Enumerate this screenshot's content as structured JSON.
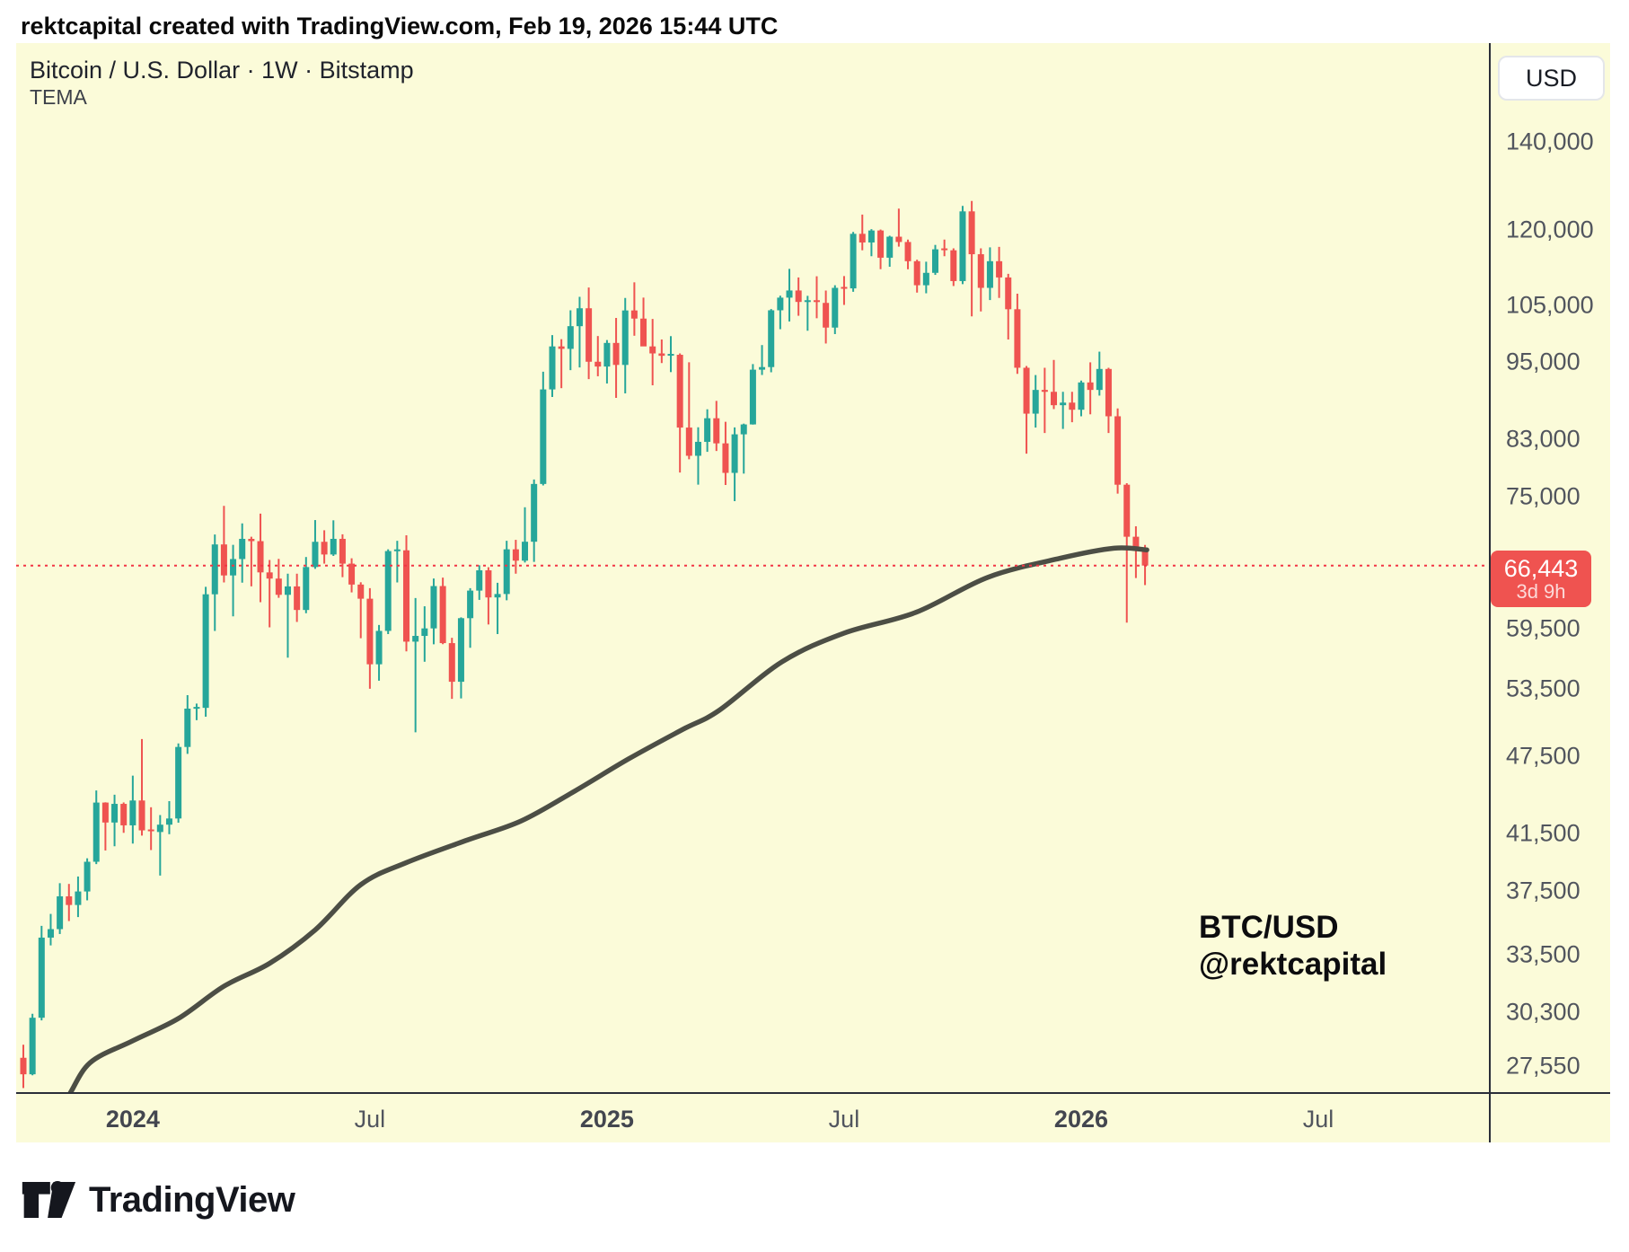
{
  "header_bar": {
    "text": "rektcapital created with TradingView.com, Feb 19, 2026 15:44 UTC"
  },
  "legend": {
    "symbol_title": "Bitcoin / U.S. Dollar · 1W · Bitstamp",
    "indicator_label": "TEMA"
  },
  "watermark": {
    "line1": "BTC/USD",
    "line2": "@rektcapital"
  },
  "price_axis": {
    "currency_button_label": "USD",
    "ticks": [
      {
        "label": "140,000",
        "value": 140000
      },
      {
        "label": "120,000",
        "value": 120000
      },
      {
        "label": "105,000",
        "value": 105000
      },
      {
        "label": "95,000",
        "value": 95000
      },
      {
        "label": "83,000",
        "value": 83000
      },
      {
        "label": "75,000",
        "value": 75000
      },
      {
        "label": "59,500",
        "value": 59500
      },
      {
        "label": "53,500",
        "value": 53500
      },
      {
        "label": "47,500",
        "value": 47500
      },
      {
        "label": "41,500",
        "value": 41500
      },
      {
        "label": "37,500",
        "value": 37500
      },
      {
        "label": "33,500",
        "value": 33500
      },
      {
        "label": "30,300",
        "value": 30300
      },
      {
        "label": "27,550",
        "value": 27550
      }
    ],
    "last_price": {
      "label": "66,443",
      "value": 66443,
      "countdown": "3d 9h"
    }
  },
  "time_axis": {
    "labels": [
      {
        "label": "2024",
        "week_index": 12,
        "bold": true
      },
      {
        "label": "Jul",
        "week_index": 38,
        "bold": false
      },
      {
        "label": "2025",
        "week_index": 64,
        "bold": true
      },
      {
        "label": "Jul",
        "week_index": 90,
        "bold": false
      },
      {
        "label": "2026",
        "week_index": 116,
        "bold": true
      },
      {
        "label": "Jul",
        "week_index": 142,
        "bold": false
      }
    ]
  },
  "footer": {
    "brand": "TradingView"
  },
  "colors": {
    "background": "#FBFBD9",
    "candle_up": "#26A69A",
    "candle_down": "#EF5350",
    "tema_line": "#4C4E45",
    "price_line": "#F23645",
    "badge_bg": "#EF5350",
    "axis_line": "#2A2E39"
  },
  "chart_data": {
    "type": "candlestick",
    "symbol": "BTC/USD",
    "exchange": "Bitstamp",
    "interval": "1W",
    "price_scale": "log",
    "visible_price_range": [
      26000,
      148000
    ],
    "price_line_value": 66443,
    "candles": [
      [
        27950,
        28600,
        26500,
        27150
      ],
      [
        27150,
        30200,
        27100,
        29990
      ],
      [
        29990,
        35250,
        29850,
        34530
      ],
      [
        34530,
        36000,
        34060,
        35050
      ],
      [
        35050,
        38000,
        34750,
        37130
      ],
      [
        37130,
        37950,
        35550,
        36570
      ],
      [
        36570,
        38450,
        35800,
        37450
      ],
      [
        37450,
        39700,
        36870,
        39460
      ],
      [
        39460,
        44730,
        39300,
        43790
      ],
      [
        43790,
        43810,
        40250,
        42280
      ],
      [
        42280,
        44400,
        40550,
        43690
      ],
      [
        43690,
        43800,
        41520,
        42070
      ],
      [
        42070,
        45910,
        40740,
        43950
      ],
      [
        43950,
        48970,
        41320,
        41700
      ],
      [
        41700,
        43430,
        40280,
        41580
      ],
      [
        41580,
        42840,
        38510,
        42120
      ],
      [
        42120,
        43900,
        41420,
        42580
      ],
      [
        42580,
        48590,
        42270,
        48290
      ],
      [
        48290,
        52900,
        47710,
        51660
      ],
      [
        51660,
        52120,
        50620,
        51730
      ],
      [
        51730,
        64000,
        50930,
        63170
      ],
      [
        63170,
        70180,
        59230,
        68960
      ],
      [
        68960,
        73800,
        64500,
        65300
      ],
      [
        65300,
        68910,
        60770,
        67210
      ],
      [
        67210,
        71560,
        64480,
        69640
      ],
      [
        69640,
        69900,
        64060,
        69360
      ],
      [
        69360,
        72800,
        62300,
        65650
      ],
      [
        65650,
        67100,
        59600,
        64940
      ],
      [
        64940,
        67230,
        62780,
        63110
      ],
      [
        63110,
        65500,
        56500,
        64050
      ],
      [
        64050,
        65500,
        60170,
        61450
      ],
      [
        61450,
        67450,
        61100,
        66270
      ],
      [
        66270,
        71980,
        66060,
        69280
      ],
      [
        69280,
        70700,
        66670,
        67750
      ],
      [
        67750,
        71950,
        67580,
        69640
      ],
      [
        69640,
        70200,
        65100,
        66670
      ],
      [
        66670,
        67300,
        63380,
        64260
      ],
      [
        64260,
        64520,
        58470,
        62680
      ],
      [
        62680,
        63850,
        53500,
        55850
      ],
      [
        55850,
        59850,
        54260,
        59230
      ],
      [
        59230,
        68370,
        58900,
        68160
      ],
      [
        68160,
        69400,
        64500,
        68250
      ],
      [
        68250,
        70080,
        57130,
        58120
      ],
      [
        58120,
        62750,
        49550,
        58710
      ],
      [
        58710,
        61850,
        56100,
        59490
      ],
      [
        59490,
        64950,
        57850,
        64090
      ],
      [
        64090,
        65050,
        57860,
        57970
      ],
      [
        57970,
        58520,
        52550,
        54160
      ],
      [
        54160,
        60660,
        52600,
        60570
      ],
      [
        60570,
        63850,
        57500,
        63580
      ],
      [
        63580,
        66480,
        62550,
        65890
      ],
      [
        65890,
        66250,
        59900,
        62820
      ],
      [
        62820,
        64460,
        58900,
        63200
      ],
      [
        63200,
        69400,
        62500,
        68370
      ],
      [
        68370,
        69520,
        65500,
        67020
      ],
      [
        67020,
        73620,
        66800,
        69290
      ],
      [
        69290,
        77300,
        66880,
        76700
      ],
      [
        76700,
        93450,
        76500,
        90580
      ],
      [
        90580,
        99660,
        89380,
        97700
      ],
      [
        97700,
        98950,
        90780,
        97280
      ],
      [
        97280,
        104100,
        93700,
        101240
      ],
      [
        101240,
        106600,
        94150,
        104480
      ],
      [
        104480,
        108360,
        92230,
        95100
      ],
      [
        95100,
        99500,
        92700,
        94300
      ],
      [
        94300,
        98800,
        91530,
        98300
      ],
      [
        98300,
        102720,
        89250,
        94570
      ],
      [
        94570,
        106400,
        89950,
        104080
      ],
      [
        104080,
        109360,
        99550,
        102600
      ],
      [
        102600,
        106460,
        97780,
        97700
      ],
      [
        97700,
        102540,
        91230,
        96500
      ],
      [
        96500,
        98900,
        94880,
        96100
      ],
      [
        96100,
        99480,
        93380,
        96270
      ],
      [
        96270,
        96500,
        78260,
        84700
      ],
      [
        84700,
        95000,
        80100,
        80600
      ],
      [
        80600,
        84750,
        76610,
        82600
      ],
      [
        82600,
        87470,
        81160,
        86100
      ],
      [
        86100,
        88770,
        81280,
        82380
      ],
      [
        82380,
        85560,
        76560,
        78210
      ],
      [
        78210,
        84720,
        74420,
        83700
      ],
      [
        83700,
        85290,
        78110,
        85170
      ],
      [
        85170,
        94700,
        85150,
        93780
      ],
      [
        93780,
        97930,
        92910,
        94210
      ],
      [
        94210,
        104330,
        93360,
        104110
      ],
      [
        104110,
        106820,
        100700,
        106450
      ],
      [
        106450,
        111980,
        102080,
        107800
      ],
      [
        107800,
        110300,
        103110,
        105650
      ],
      [
        105650,
        106790,
        100430,
        105800
      ],
      [
        105800,
        110530,
        102660,
        105470
      ],
      [
        105470,
        107790,
        98200,
        100990
      ],
      [
        100990,
        108800,
        99840,
        108300
      ],
      [
        108300,
        110570,
        105100,
        108200
      ],
      [
        108200,
        119500,
        107550,
        119100
      ],
      [
        119100,
        123200,
        115700,
        117300
      ],
      [
        117300,
        120080,
        114500,
        119800
      ],
      [
        119800,
        120000,
        111920,
        114200
      ],
      [
        114200,
        118700,
        112400,
        118500
      ],
      [
        118500,
        124500,
        116450,
        117400
      ],
      [
        117400,
        117900,
        111900,
        113500
      ],
      [
        113500,
        113800,
        107400,
        108800
      ],
      [
        108800,
        113400,
        107270,
        111200
      ],
      [
        111200,
        116800,
        110800,
        115900
      ],
      [
        115900,
        117900,
        114500,
        115700
      ],
      [
        115700,
        116100,
        108650,
        109600
      ],
      [
        109600,
        125100,
        109000,
        123900
      ],
      [
        123900,
        126200,
        103000,
        114900
      ],
      [
        114900,
        116100,
        103900,
        108300
      ],
      [
        108300,
        116300,
        106000,
        113500
      ],
      [
        113500,
        116400,
        106400,
        110300
      ],
      [
        110300,
        111000,
        98900,
        104300
      ],
      [
        104300,
        107200,
        93100,
        94100
      ],
      [
        94100,
        94400,
        80900,
        86800
      ],
      [
        86800,
        92900,
        84700,
        90500
      ],
      [
        90500,
        94100,
        83900,
        90200
      ],
      [
        90200,
        95400,
        87500,
        88100
      ],
      [
        88100,
        90200,
        84500,
        88500
      ],
      [
        88500,
        90200,
        85500,
        87400
      ],
      [
        87400,
        92000,
        86400,
        91700
      ],
      [
        91700,
        95000,
        86700,
        90500
      ],
      [
        90500,
        96800,
        89600,
        93900
      ],
      [
        93900,
        94100,
        83900,
        86400
      ],
      [
        86400,
        87600,
        75400,
        76600
      ],
      [
        76600,
        76800,
        60100,
        69900
      ],
      [
        69900,
        71200,
        65000,
        68200
      ],
      [
        68200,
        68900,
        64200,
        66443
      ]
    ],
    "tema_points": [
      [
        3,
        25400
      ],
      [
        4.8,
        26050
      ],
      [
        7.3,
        27700
      ],
      [
        12,
        28800
      ],
      [
        17,
        29950
      ],
      [
        22,
        31700
      ],
      [
        27,
        33000
      ],
      [
        32,
        35000
      ],
      [
        37,
        37900
      ],
      [
        42,
        39400
      ],
      [
        48.7,
        41000
      ],
      [
        54.6,
        42400
      ],
      [
        60.5,
        44700
      ],
      [
        66.4,
        47300
      ],
      [
        72.3,
        49800
      ],
      [
        76.3,
        51500
      ],
      [
        83.2,
        56100
      ],
      [
        90,
        59000
      ],
      [
        97.9,
        61200
      ],
      [
        105.8,
        65100
      ],
      [
        113.7,
        67300
      ],
      [
        119.6,
        68500
      ],
      [
        123.2,
        68300
      ]
    ]
  }
}
